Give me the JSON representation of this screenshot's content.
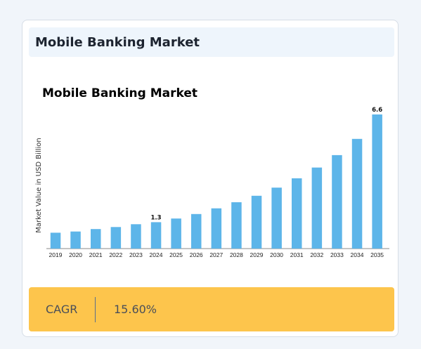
{
  "card": {
    "header_title": "Mobile Banking Market"
  },
  "chart_data": {
    "type": "bar",
    "title": "Mobile Banking Market",
    "ylabel": "Market Value in USD Billion",
    "xlabel": "",
    "categories": [
      "2019",
      "2020",
      "2021",
      "2022",
      "2023",
      "2024",
      "2025",
      "2026",
      "2027",
      "2028",
      "2029",
      "2030",
      "2031",
      "2032",
      "2033",
      "2034",
      "2035"
    ],
    "values": [
      0.78,
      0.84,
      0.96,
      1.06,
      1.2,
      1.3,
      1.48,
      1.7,
      1.98,
      2.28,
      2.6,
      3.0,
      3.46,
      3.99,
      4.6,
      5.4,
      6.6
    ],
    "data_labels": [
      {
        "category": "2024",
        "text": "1.3"
      },
      {
        "category": "2035",
        "text": "6.6"
      }
    ],
    "ylim": [
      0,
      7.5
    ],
    "grid": false,
    "legend": "none",
    "bar_color": "#5db5e9"
  },
  "footer": {
    "label": "CAGR",
    "value": "15.60%",
    "background": "#fdc54c"
  }
}
